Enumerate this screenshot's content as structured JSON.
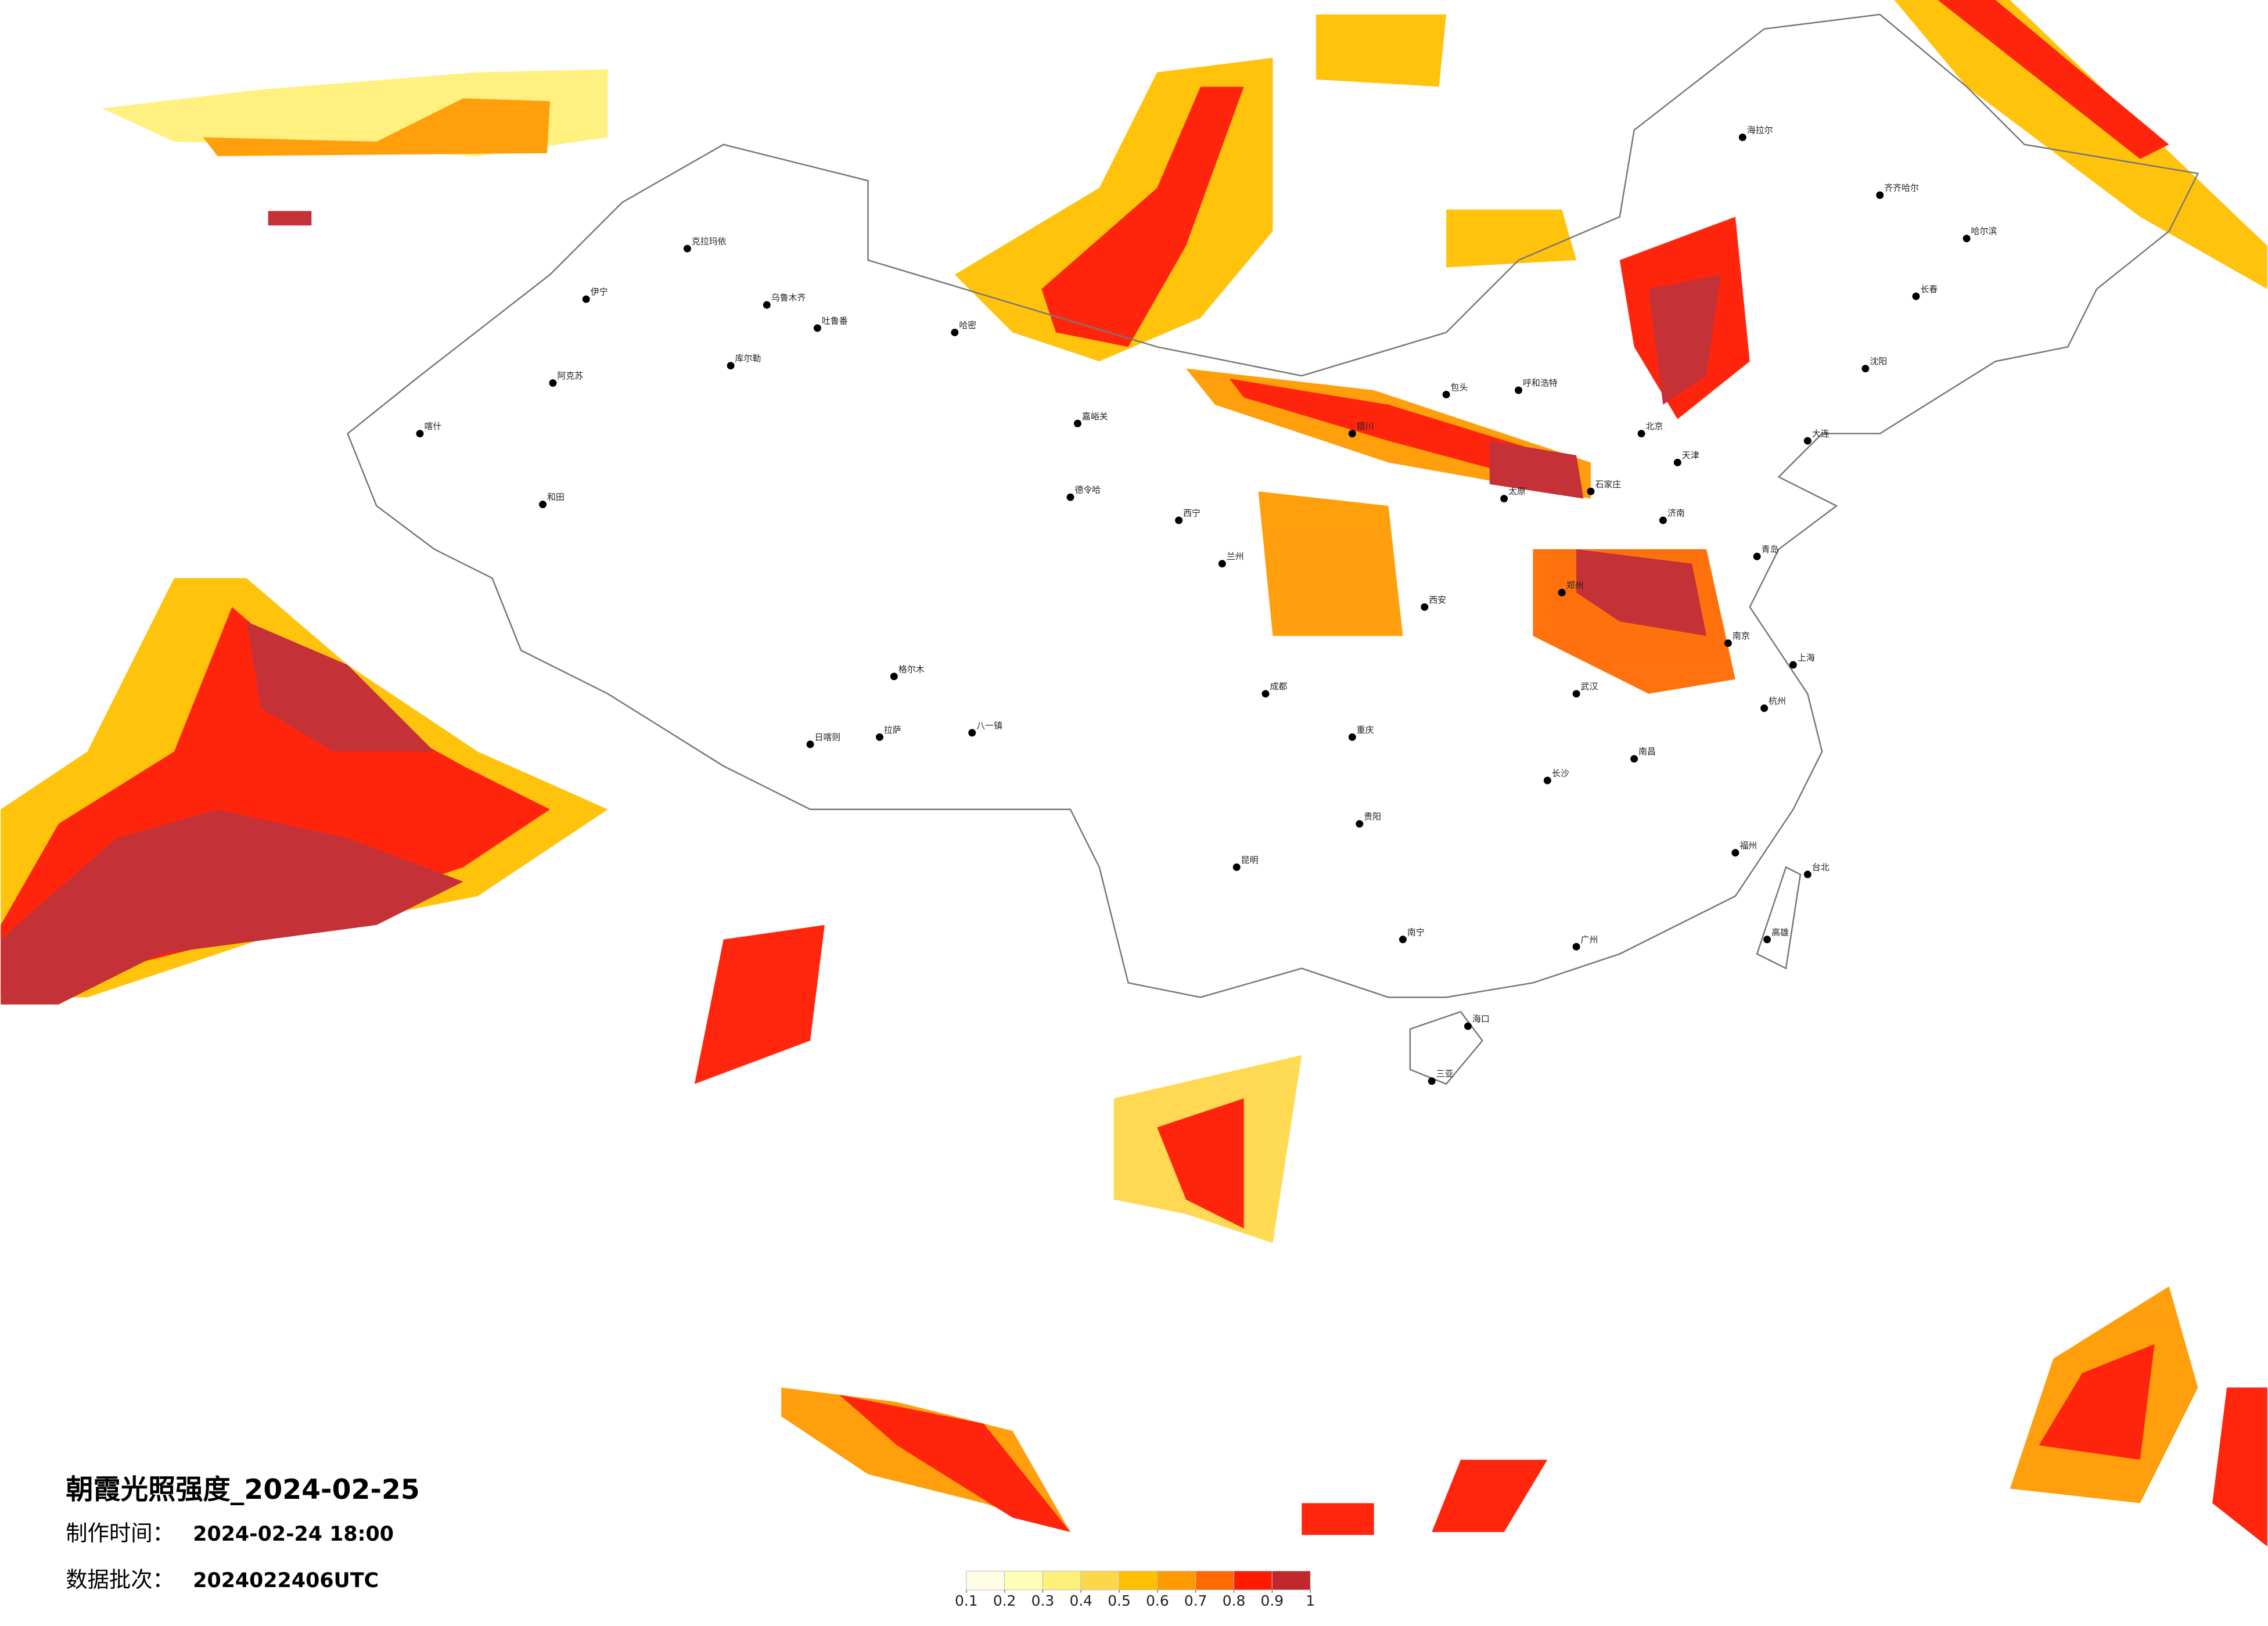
{
  "header": {
    "title": "朝霞光照强度_2024-02-25",
    "made_label": "制作时间：",
    "made_time": "2024-02-24 18:00",
    "batch_label": "数据批次：",
    "batch": "2024022406UTC"
  },
  "legend": {
    "ticks": [
      0.1,
      0.2,
      0.3,
      0.4,
      0.5,
      0.6,
      0.7,
      0.8,
      0.9,
      1
    ],
    "colors": [
      "#fffde8",
      "#ffffb8",
      "#fff07a",
      "#ffd84a",
      "#ffc000",
      "#ff9a00",
      "#ff6a00",
      "#ff1a00",
      "#c1272d"
    ]
  },
  "cities": [
    "克拉玛依",
    "伊宁",
    "乌鲁木齐",
    "吐鲁番",
    "哈密",
    "库尔勒",
    "阿克苏",
    "喀什",
    "和田",
    "格尔木",
    "拉萨",
    "日喀则",
    "八一镇",
    "嘉峪关",
    "德令哈",
    "西宁",
    "兰州",
    "银川",
    "呼和浩特",
    "包头",
    "北京",
    "天津",
    "石家庄",
    "太原",
    "西安",
    "郑州",
    "济南",
    "青岛",
    "南京",
    "上海",
    "杭州",
    "武汉",
    "长沙",
    "南昌",
    "福州",
    "广州",
    "南宁",
    "海口",
    "三亚",
    "昆明",
    "贵阳",
    "重庆",
    "成都",
    "哈尔滨",
    "长春",
    "沈阳",
    "大连",
    "齐齐哈尔",
    "海拉尔",
    "台北",
    "高雄"
  ]
}
